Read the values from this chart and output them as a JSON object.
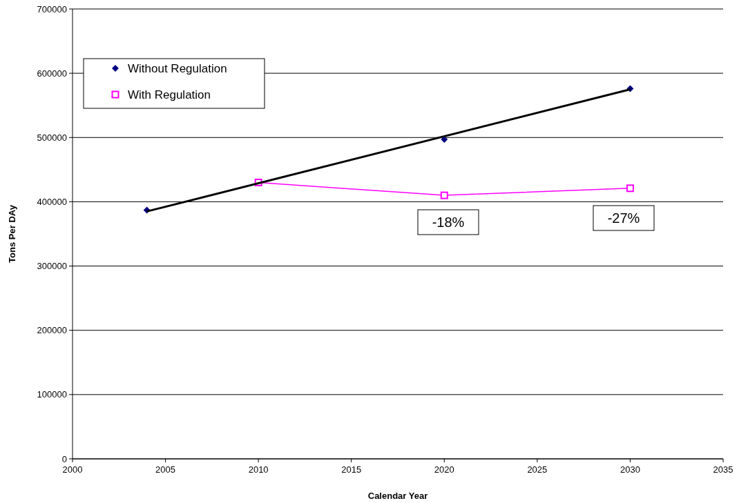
{
  "chart_data": {
    "type": "line",
    "xlabel": "Calendar Year",
    "ylabel": "Tons Per DAy",
    "xlim": [
      2000,
      2035
    ],
    "xticks": [
      2000,
      2005,
      2010,
      2015,
      2020,
      2025,
      2030,
      2035
    ],
    "ylim": [
      0,
      700000
    ],
    "yticks": [
      0,
      100000,
      200000,
      300000,
      400000,
      500000,
      600000,
      700000
    ],
    "grid": "y",
    "legend": "top left",
    "series": [
      {
        "name": "Without Regulation",
        "type": "scatter",
        "color": "#000080",
        "marker": "diamond",
        "x": [
          2004,
          2010,
          2020,
          2030
        ],
        "values": [
          387000,
          null,
          497000,
          576000
        ]
      },
      {
        "name": "With Regulation",
        "type": "line",
        "color": "#ff00ff",
        "marker": "square",
        "x": [
          2010,
          2020,
          2030
        ],
        "values": [
          430000,
          410000,
          421000
        ]
      },
      {
        "color": "#000000",
        "marker": "none",
        "x": [
          2004,
          2030
        ],
        "values": [
          385000,
          575000
        ]
      }
    ],
    "annotations": [
      "-18%",
      "-27%"
    ]
  }
}
